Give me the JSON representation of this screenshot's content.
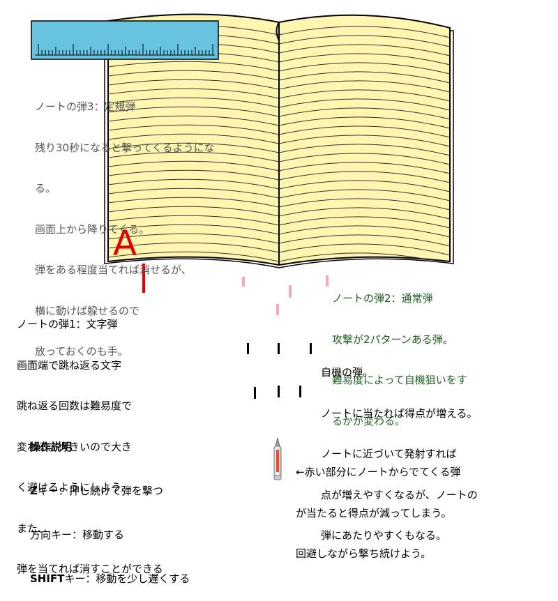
{
  "letter_bullet": "A",
  "note3_lines": [
    "ノートの弾3：定規弾",
    "残り30秒になると撃ってくるようにな",
    "る。",
    "画面上から降りてくる。",
    "弾をある程度当てれば消せるが、",
    "横に動けば躱せるので",
    "放っておくのも手。"
  ],
  "note1_lines": [
    "ノートの弾1：文字弾",
    "画面端で跳ね返る文字",
    "跳ね返る回数は難易度で",
    "変わる。大きいので大き",
    "く避けるようにしよう",
    "また、",
    "弾を当てれば消すことができる"
  ],
  "note2_lines": [
    "ノートの弾2：通常弾",
    "攻撃が2パターンある弾。",
    "難易度によって自機狙いをす",
    "るかが変わる。"
  ],
  "player_shot_lines": [
    "自機の弾。",
    "ノートに当たれば得点が増える。",
    "ノートに近づいて発射すれば",
    "点が増えやすくなるが、ノートの",
    "弾にあたりやすくもなる。"
  ],
  "controls": {
    "title": "操作説明",
    "items": [
      {
        "key": "Z",
        "rest": "キー：押し続けて弾を撃つ"
      },
      {
        "key": "",
        "rest": "方向キー：移動する"
      },
      {
        "key": "SHIFT",
        "rest": "キー：移動を少し遅くする"
      }
    ]
  },
  "pen_note_lines": [
    "←赤い部分にノートからでてくる弾",
    "が当たると得点が減ってしまう。",
    "回避しながら撃ち続けよう。"
  ],
  "colors": {
    "paper": "#fdf5b0",
    "ruler": "#67c3e0",
    "letter_bullet": "#e00000",
    "note_bullet": "#f3a9c6",
    "player_bullet": "#000000"
  }
}
